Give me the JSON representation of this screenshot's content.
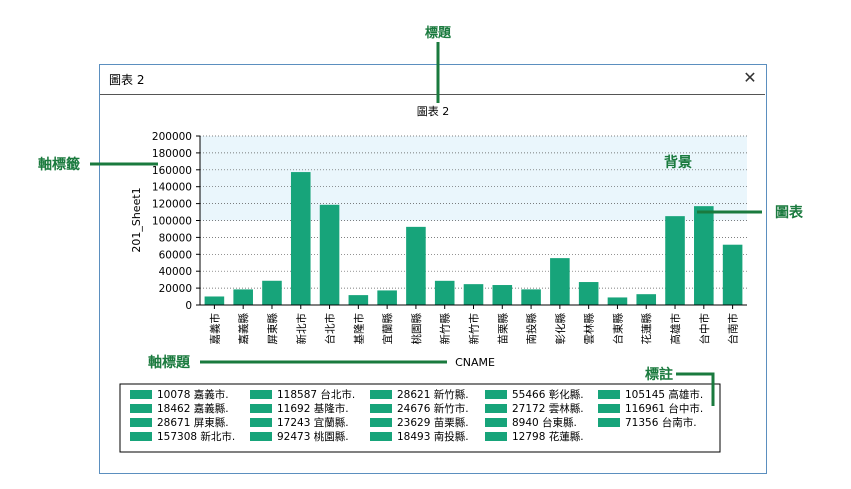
{
  "window": {
    "title": "圖表 2",
    "close_icon": "close-icon"
  },
  "annotations": {
    "title": "標題",
    "axis_tick_label": "軸標籤",
    "background": "背景",
    "chart": "圖表",
    "axis_title": "軸標題",
    "legend": "標註"
  },
  "colors": {
    "bar": "#17a47a",
    "annotation": "#1a7a3e",
    "plot_bg": "#eaf6fc",
    "grid": "#555555"
  },
  "chart_data": {
    "type": "bar",
    "title": "圖表 2",
    "xlabel": "CNAME",
    "ylabel": "201_Sheet1",
    "ylim": [
      0,
      200000
    ],
    "yticks": [
      0,
      20000,
      40000,
      60000,
      80000,
      100000,
      120000,
      140000,
      160000,
      180000,
      200000
    ],
    "grid": true,
    "categories": [
      "嘉義市",
      "嘉義縣",
      "屏東縣",
      "新北市",
      "台北市",
      "基隆市",
      "宜蘭縣",
      "桃園縣",
      "新竹縣",
      "新竹市",
      "苗栗縣",
      "南投縣",
      "彰化縣",
      "雲林縣",
      "台東縣",
      "花蓮縣",
      "高雄市",
      "台中市",
      "台南市"
    ],
    "values": [
      10078,
      18462,
      28671,
      157308,
      118587,
      11692,
      17243,
      92473,
      28621,
      24676,
      23629,
      18493,
      55466,
      27172,
      8940,
      12798,
      105145,
      116961,
      71356
    ],
    "legend_entries": [
      "10078 嘉義市.",
      "18462 嘉義縣.",
      "28671 屏東縣.",
      "157308 新北市.",
      "118587 台北市.",
      "11692 基隆市.",
      "17243 宜蘭縣.",
      "92473 桃園縣.",
      "28621 新竹縣.",
      "24676 新竹市.",
      "23629 苗栗縣.",
      "18493 南投縣.",
      "55466 彰化縣.",
      "27172 雲林縣.",
      "8940 台東縣.",
      "12798 花蓮縣.",
      "105145 高雄市.",
      "116961 台中市.",
      "71356 台南市."
    ]
  }
}
